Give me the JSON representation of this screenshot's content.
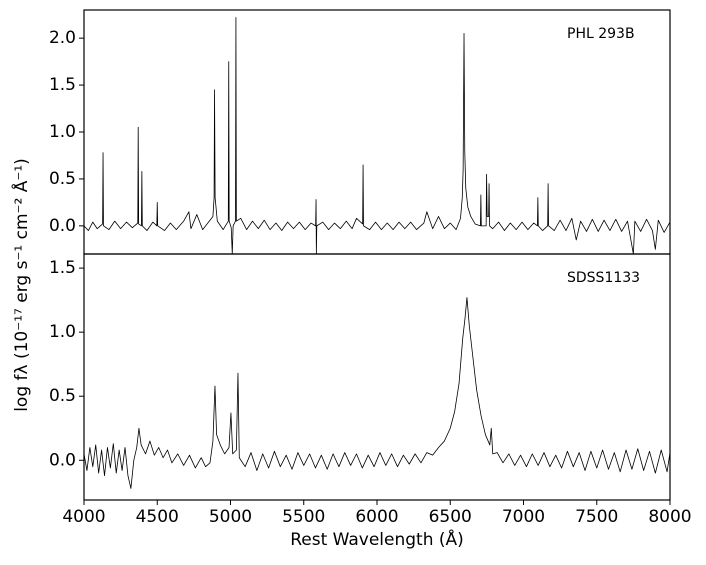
{
  "chart_data": [
    {
      "type": "line",
      "annotation": "PHL 293B",
      "ylabel": "log fλ (10⁻¹⁷ erg s⁻¹ cm⁻² Å⁻¹)",
      "color": "#000000",
      "xlim": [
        4000,
        8000
      ],
      "ylim": [
        -0.3,
        2.3
      ],
      "yticks": [
        {
          "value": 0,
          "label": "0.0"
        },
        {
          "value": 0.5,
          "label": "0.5"
        },
        {
          "value": 1,
          "label": "1.0"
        },
        {
          "value": 1.5,
          "label": "1.5"
        },
        {
          "value": 2,
          "label": "2.0"
        }
      ],
      "x": [
        4000,
        4030,
        4060,
        4090,
        4127,
        4130,
        4133,
        4170,
        4210,
        4250,
        4290,
        4330,
        4367,
        4370,
        4373,
        4392,
        4395,
        4398,
        4430,
        4470,
        4497,
        4500,
        4503,
        4550,
        4590,
        4630,
        4680,
        4716,
        4730,
        4770,
        4810,
        4850,
        4880,
        4888,
        4891,
        4895,
        4910,
        4950,
        4985,
        4988,
        4991,
        5005,
        5012,
        5018,
        5034,
        5037,
        5040,
        5070,
        5110,
        5150,
        5190,
        5230,
        5270,
        5310,
        5350,
        5390,
        5430,
        5470,
        5510,
        5550,
        5581,
        5584,
        5586,
        5589,
        5630,
        5670,
        5710,
        5750,
        5790,
        5830,
        5860,
        5902,
        5905,
        5908,
        5950,
        5990,
        6030,
        6070,
        6110,
        6150,
        6190,
        6230,
        6270,
        6320,
        6340,
        6380,
        6420,
        6460,
        6500,
        6540,
        6570,
        6582,
        6588,
        6594,
        6599,
        6606,
        6620,
        6640,
        6670,
        6706,
        6709,
        6712,
        6745,
        6748,
        6752,
        6762,
        6765,
        6768,
        6790,
        6830,
        6870,
        6910,
        6950,
        6990,
        7030,
        7070,
        7095,
        7098,
        7101,
        7130,
        7165,
        7168,
        7171,
        7210,
        7250,
        7290,
        7330,
        7360,
        7390,
        7430,
        7470,
        7510,
        7550,
        7590,
        7630,
        7670,
        7710,
        7750,
        7760,
        7800,
        7840,
        7880,
        7900,
        7920,
        7960,
        8000
      ],
      "values": [
        0.0,
        -0.05,
        0.04,
        -0.03,
        0.02,
        0.78,
        0.0,
        -0.04,
        0.05,
        -0.03,
        0.04,
        -0.02,
        0.03,
        1.05,
        0.02,
        0.0,
        0.58,
        0.0,
        -0.05,
        0.04,
        0.0,
        0.25,
        0.0,
        -0.05,
        0.03,
        -0.04,
        0.05,
        0.15,
        -0.03,
        0.12,
        -0.04,
        0.04,
        0.1,
        0.3,
        1.45,
        0.3,
        0.05,
        -0.04,
        0.05,
        1.75,
        0.05,
        -0.02,
        -0.3,
        0.0,
        0.05,
        2.22,
        0.05,
        0.08,
        -0.04,
        0.05,
        -0.03,
        0.06,
        -0.04,
        0.03,
        -0.05,
        0.04,
        -0.03,
        0.04,
        -0.04,
        0.03,
        0.0,
        0.28,
        -0.3,
        0.0,
        0.04,
        -0.04,
        0.03,
        -0.03,
        0.05,
        -0.03,
        0.08,
        0.02,
        0.65,
        0.0,
        -0.04,
        0.04,
        -0.04,
        0.03,
        -0.04,
        0.04,
        -0.03,
        0.04,
        -0.04,
        0.03,
        0.15,
        -0.03,
        0.1,
        -0.03,
        0.03,
        -0.04,
        0.08,
        0.3,
        0.6,
        2.05,
        0.8,
        0.4,
        0.2,
        0.1,
        0.02,
        0.0,
        0.33,
        0.0,
        0.0,
        0.55,
        0.1,
        0.1,
        0.45,
        0.0,
        -0.03,
        0.04,
        -0.05,
        0.03,
        -0.04,
        0.04,
        -0.04,
        0.03,
        0.0,
        0.3,
        0.0,
        -0.05,
        0.0,
        0.45,
        0.0,
        -0.05,
        0.06,
        -0.05,
        0.08,
        -0.15,
        0.05,
        -0.06,
        0.07,
        -0.06,
        0.06,
        -0.05,
        0.07,
        -0.06,
        0.05,
        -0.3,
        0.05,
        -0.06,
        0.07,
        -0.05,
        -0.25,
        0.06,
        -0.07,
        0.04
      ]
    },
    {
      "type": "line",
      "annotation": "SDSS1133",
      "xlabel": "Rest Wavelength (Å)",
      "color": "#000000",
      "xlim": [
        4000,
        8000
      ],
      "ylim": [
        -0.31,
        1.61
      ],
      "xticks": [
        4000,
        4500,
        5000,
        5500,
        6000,
        6500,
        7000,
        7500,
        8000
      ],
      "yticks": [
        {
          "value": 0,
          "label": "0.0"
        },
        {
          "value": 0.5,
          "label": "0.5"
        },
        {
          "value": 1,
          "label": "1.0"
        },
        {
          "value": 1.5,
          "label": "1.5"
        }
      ],
      "x": [
        4000,
        4020,
        4040,
        4060,
        4080,
        4100,
        4120,
        4140,
        4160,
        4180,
        4200,
        4220,
        4240,
        4260,
        4280,
        4300,
        4320,
        4340,
        4360,
        4375,
        4390,
        4420,
        4450,
        4480,
        4510,
        4540,
        4570,
        4600,
        4640,
        4680,
        4720,
        4760,
        4800,
        4830,
        4860,
        4880,
        4894,
        4905,
        4930,
        4960,
        4990,
        5003,
        5015,
        5040,
        5051,
        5060,
        5100,
        5140,
        5180,
        5220,
        5260,
        5300,
        5340,
        5380,
        5420,
        5460,
        5500,
        5540,
        5580,
        5620,
        5660,
        5700,
        5740,
        5780,
        5820,
        5860,
        5900,
        5940,
        5980,
        6020,
        6060,
        6100,
        6140,
        6180,
        6220,
        6260,
        6300,
        6340,
        6380,
        6420,
        6460,
        6500,
        6530,
        6560,
        6585,
        6600,
        6614,
        6630,
        6650,
        6680,
        6710,
        6740,
        6770,
        6780,
        6790,
        6820,
        6860,
        6900,
        6940,
        6980,
        7020,
        7060,
        7100,
        7140,
        7180,
        7220,
        7260,
        7300,
        7340,
        7380,
        7420,
        7460,
        7500,
        7540,
        7580,
        7620,
        7660,
        7700,
        7740,
        7780,
        7820,
        7860,
        7900,
        7940,
        7980,
        8000
      ],
      "values": [
        0.05,
        -0.08,
        0.1,
        -0.05,
        0.12,
        -0.1,
        0.08,
        -0.12,
        0.1,
        -0.06,
        0.13,
        -0.1,
        0.08,
        -0.08,
        0.1,
        -0.12,
        -0.22,
        0.0,
        0.1,
        0.25,
        0.12,
        0.05,
        0.15,
        0.04,
        0.1,
        0.02,
        0.08,
        -0.02,
        0.05,
        -0.04,
        0.04,
        -0.06,
        0.02,
        -0.05,
        -0.02,
        0.15,
        0.58,
        0.2,
        0.12,
        0.05,
        0.1,
        0.37,
        0.05,
        0.08,
        0.68,
        0.02,
        -0.05,
        0.06,
        -0.08,
        0.05,
        -0.06,
        0.07,
        -0.05,
        0.04,
        -0.07,
        0.06,
        -0.04,
        0.05,
        -0.06,
        0.04,
        -0.07,
        0.05,
        -0.05,
        0.06,
        -0.04,
        0.05,
        -0.06,
        0.04,
        -0.05,
        0.06,
        -0.04,
        0.05,
        -0.05,
        0.04,
        -0.03,
        0.05,
        -0.02,
        0.06,
        0.04,
        0.1,
        0.15,
        0.25,
        0.38,
        0.6,
        0.95,
        1.1,
        1.27,
        1.05,
        0.85,
        0.55,
        0.35,
        0.2,
        0.12,
        0.25,
        0.05,
        0.06,
        -0.02,
        0.05,
        -0.04,
        0.04,
        -0.05,
        0.05,
        -0.04,
        0.06,
        -0.05,
        0.04,
        -0.06,
        0.07,
        -0.05,
        0.06,
        -0.08,
        0.07,
        -0.06,
        0.08,
        -0.07,
        0.06,
        -0.09,
        0.08,
        -0.07,
        0.09,
        -0.08,
        0.07,
        -0.1,
        0.08,
        -0.09,
        0.06
      ]
    }
  ]
}
